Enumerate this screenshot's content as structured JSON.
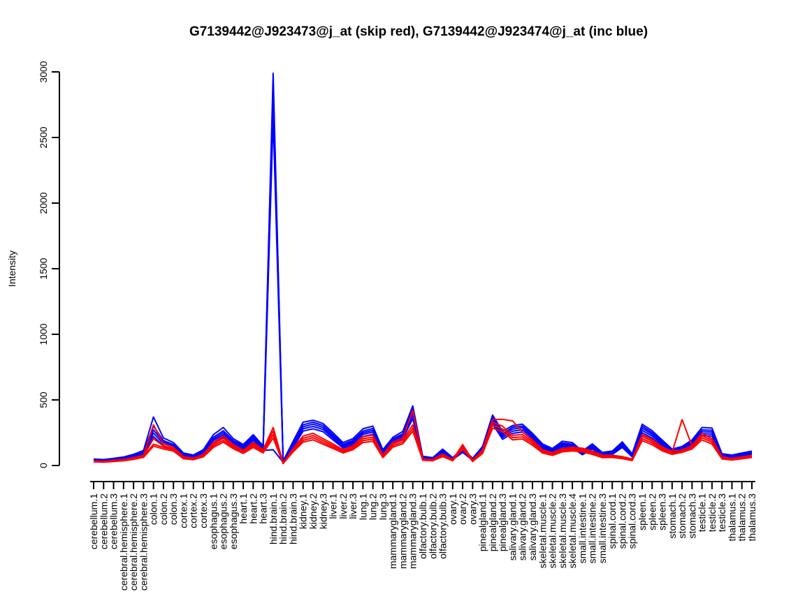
{
  "chart_data": {
    "type": "line",
    "title": "G7139442@J923473@j_at (skip red), G7139442@J923474@j_at (inc blue)",
    "xlabel": "",
    "ylabel": "Intensity",
    "ylim": [
      0,
      3000
    ],
    "yticks": [
      0,
      500,
      1000,
      1500,
      2000,
      2500,
      3000
    ],
    "grid": false,
    "legend_position": "none",
    "colors": {
      "skip": "#ff0000",
      "inc": "#0000ff"
    },
    "categories": [
      "cerebellum.1",
      "cerebellum.2",
      "cerebellum.3",
      "cerebral.hemisphere.1",
      "cerebral.hemisphere.2",
      "cerebral.hemisphere.3",
      "colon.1",
      "colon.2",
      "colon.3",
      "cortex.1",
      "cortex.2",
      "cortex.3",
      "esophagus.1",
      "esophagus.2",
      "esophagus.3",
      "heart.1",
      "heart.2",
      "heart.3",
      "hind.brain.1",
      "hind.brain.2",
      "hind.brain.3",
      "kidney.1",
      "kidney.2",
      "kidney.3",
      "liver.1",
      "liver.2",
      "liver.3",
      "lung.1",
      "lung.2",
      "lung.3",
      "mammarygland.1",
      "mammarygland.2",
      "mammarygland.3",
      "olfactory.bulb.1",
      "olfactory.bulb.2",
      "olfactory.bulb.3",
      "ovary.1",
      "ovary.2",
      "ovary.3",
      "pinealgland.1",
      "pinealgland.2",
      "pinealgland.3",
      "salivary.gland.1",
      "salivary.gland.2",
      "salivary.gland.3",
      "skeletal.muscle.1",
      "skeletal.muscle.2",
      "skeletal.muscle.3",
      "skeletal.muscle.4",
      "small.intestine.1",
      "small.intestine.2",
      "small.intestine.3",
      "spinal.cord.1",
      "spinal.cord.2",
      "spinal.cord.3",
      "spleen.1",
      "spleen.2",
      "spleen.3",
      "stomach.1",
      "stomach.2",
      "stomach.3",
      "testicle.1",
      "testicle.2",
      "testicle.3",
      "thalamus.1",
      "thalamus.2",
      "thalamus.3"
    ],
    "series": [
      {
        "name": "inc-blue-1",
        "group": "inc",
        "color": "#0000ff",
        "values": [
          50,
          45,
          55,
          65,
          85,
          115,
          370,
          210,
          175,
          95,
          80,
          120,
          235,
          290,
          205,
          160,
          235,
          150,
          2990,
          35,
          185,
          330,
          345,
          320,
          250,
          175,
          205,
          280,
          300,
          120,
          215,
          260,
          455,
          70,
          60,
          125,
          60,
          130,
          55,
          145,
          385,
          260,
          305,
          315,
          245,
          165,
          130,
          185,
          175,
          110,
          165,
          100,
          110,
          180,
          90,
          315,
          265,
          195,
          125,
          145,
          195,
          290,
          285,
          90,
          80,
          95,
          110
        ]
      },
      {
        "name": "inc-blue-2",
        "group": "inc",
        "color": "#0000ff",
        "values": [
          45,
          40,
          50,
          60,
          78,
          105,
          300,
          190,
          160,
          85,
          72,
          110,
          215,
          265,
          190,
          150,
          220,
          140,
          2920,
          30,
          165,
          310,
          330,
          305,
          235,
          162,
          192,
          262,
          282,
          112,
          202,
          242,
          430,
          62,
          55,
          115,
          55,
          122,
          50,
          132,
          370,
          240,
          292,
          300,
          232,
          152,
          122,
          172,
          162,
          100,
          152,
          92,
          102,
          168,
          82,
          300,
          250,
          182,
          118,
          135,
          182,
          272,
          268,
          82,
          72,
          88,
          102
        ]
      },
      {
        "name": "inc-blue-3",
        "group": "inc",
        "color": "#0000ff",
        "values": [
          42,
          38,
          48,
          56,
          72,
          98,
          272,
          178,
          150,
          80,
          68,
          102,
          202,
          250,
          178,
          142,
          208,
          132,
          2800,
          28,
          155,
          295,
          315,
          290,
          222,
          152,
          182,
          250,
          268,
          105,
          192,
          230,
          408,
          58,
          52,
          108,
          52,
          115,
          47,
          125,
          352,
          228,
          278,
          288,
          220,
          145,
          115,
          162,
          155,
          95,
          145,
          87,
          96,
          158,
          77,
          285,
          238,
          172,
          112,
          128,
          172,
          258,
          255,
          77,
          68,
          82,
          96
        ]
      },
      {
        "name": "inc-blue-4",
        "group": "inc",
        "color": "#0000ff",
        "values": [
          40,
          35,
          45,
          52,
          68,
          92,
          248,
          165,
          140,
          75,
          63,
          95,
          190,
          235,
          168,
          133,
          195,
          124,
          2650,
          26,
          145,
          280,
          298,
          275,
          210,
          143,
          172,
          237,
          255,
          98,
          182,
          218,
          385,
          55,
          48,
          102,
          48,
          108,
          44,
          118,
          335,
          215,
          262,
          272,
          208,
          136,
          108,
          152,
          146,
          89,
          136,
          82,
          90,
          148,
          72,
          268,
          224,
          162,
          105,
          120,
          162,
          243,
          240,
          72,
          63,
          77,
          90
        ]
      },
      {
        "name": "inc-blue-5",
        "group": "inc",
        "color": "#0000ff",
        "values": [
          38,
          32,
          42,
          48,
          62,
          85,
          222,
          150,
          128,
          68,
          58,
          88,
          175,
          218,
          155,
          124,
          180,
          115,
          120,
          24,
          135,
          262,
          280,
          258,
          196,
          133,
          160,
          222,
          238,
          90,
          170,
          205,
          358,
          50,
          44,
          94,
          44,
          100,
          40,
          108,
          315,
          200,
          245,
          255,
          194,
          126,
          100,
          142,
          136,
          82,
          126,
          75,
          84,
          138,
          66,
          250,
          208,
          150,
          98,
          112,
          150,
          228,
          225,
          66,
          58,
          70,
          84
        ]
      },
      {
        "name": "skip-red-1",
        "group": "skip",
        "color": "#ff0000",
        "values": [
          35,
          32,
          40,
          45,
          60,
          78,
          310,
          165,
          140,
          68,
          56,
          85,
          175,
          225,
          160,
          115,
          175,
          120,
          290,
          20,
          130,
          225,
          245,
          205,
          165,
          120,
          152,
          220,
          232,
          80,
          178,
          210,
          420,
          50,
          45,
          88,
          45,
          160,
          40,
          118,
          350,
          352,
          340,
          255,
          195,
          120,
          98,
          130,
          140,
          132,
          110,
          78,
          78,
          68,
          50,
          235,
          198,
          142,
          108,
          118,
          152,
          245,
          205,
          65,
          55,
          65,
          78
        ]
      },
      {
        "name": "skip-red-2",
        "group": "skip",
        "color": "#ff0000",
        "values": [
          32,
          29,
          36,
          42,
          55,
          72,
          205,
          148,
          128,
          62,
          52,
          78,
          162,
          208,
          148,
          108,
          162,
          112,
          262,
          18,
          122,
          208,
          228,
          190,
          152,
          112,
          142,
          205,
          215,
          72,
          165,
          195,
          310,
          46,
          42,
          80,
          42,
          148,
          37,
          108,
          330,
          300,
          230,
          235,
          182,
          112,
          90,
          122,
          130,
          122,
          100,
          72,
          72,
          62,
          46,
          222,
          185,
          132,
          100,
          350,
          148,
          228,
          192,
          60,
          50,
          60,
          72
        ]
      },
      {
        "name": "skip-red-3",
        "group": "skip",
        "color": "#ff0000",
        "values": [
          30,
          27,
          34,
          39,
          51,
          67,
          162,
          138,
          120,
          57,
          48,
          72,
          150,
          192,
          138,
          100,
          150,
          104,
          235,
          16,
          112,
          192,
          212,
          175,
          140,
          104,
          131,
          190,
          200,
          66,
          152,
          180,
          285,
          43,
          39,
          74,
          39,
          136,
          34,
          100,
          308,
          278,
          212,
          218,
          168,
          104,
          83,
          113,
          120,
          113,
          92,
          66,
          66,
          57,
          42,
          205,
          172,
          122,
          92,
          108,
          136,
          212,
          178,
          55,
          46,
          55,
          66
        ]
      },
      {
        "name": "skip-red-4",
        "group": "skip",
        "color": "#ff0000",
        "values": [
          28,
          25,
          31,
          36,
          47,
          62,
          148,
          126,
          110,
          52,
          44,
          66,
          138,
          178,
          128,
          92,
          138,
          96,
          210,
          15,
          104,
          178,
          196,
          162,
          130,
          96,
          121,
          175,
          185,
          60,
          140,
          166,
          262,
          40,
          36,
          68,
          36,
          125,
          31,
          92,
          285,
          258,
          196,
          202,
          155,
          96,
          77,
          104,
          111,
          104,
          85,
          60,
          61,
          52,
          38,
          190,
          158,
          112,
          85,
          100,
          126,
          196,
          164,
          50,
          42,
          51,
          61
        ]
      }
    ]
  }
}
